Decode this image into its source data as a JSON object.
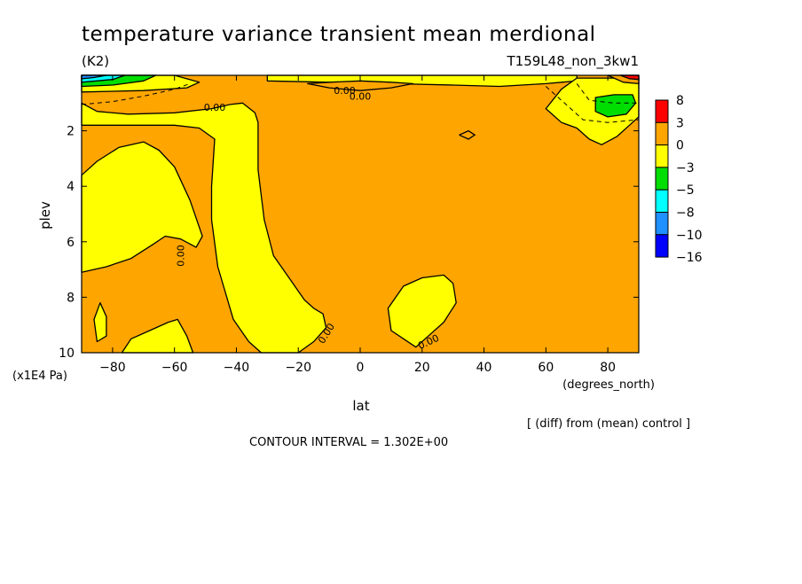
{
  "chart_data": {
    "type": "heatmap",
    "title": "temperature variance transient mean merdional",
    "units": "(K2)",
    "run_label": "T159L48_non_3kw1",
    "xlabel": "lat",
    "x_units": "(degrees_north)",
    "ylabel": "plev",
    "y_units": "(x1E4 Pa)",
    "xlim": [
      -90,
      90
    ],
    "ylim": [
      10,
      0
    ],
    "x_ticks": [
      "-80",
      "-60",
      "-40",
      "-20",
      "0",
      "20",
      "40",
      "60",
      "80"
    ],
    "y_ticks": [
      "2",
      "4",
      "6",
      "8",
      "10"
    ],
    "colorbar": {
      "levels": [
        "8",
        "3",
        "0",
        "-3",
        "-5",
        "-8",
        "-10",
        "-16"
      ],
      "colors": [
        "#ff0000",
        "#ffa500",
        "#ffff00",
        "#00dd00",
        "#00ffff",
        "#1e90ff",
        "#0000ff"
      ]
    },
    "contour_labels": [
      "0.00",
      "0.00",
      "0.00",
      "0.00",
      "0.00",
      "0.00"
    ],
    "footer_note": "[ (diff) from (mean) control ]",
    "contour_interval": "CONTOUR INTERVAL = 1.302E+00",
    "regions": [
      {
        "name": "south-polar-lower-lobe",
        "level": "-3",
        "points": [
          [
            -90,
            3.6
          ],
          [
            -85,
            3.1
          ],
          [
            -78,
            2.6
          ],
          [
            -70,
            2.4
          ],
          [
            -65,
            2.7
          ],
          [
            -60,
            3.3
          ],
          [
            -55,
            4.5
          ],
          [
            -51,
            5.8
          ],
          [
            -53,
            6.2
          ],
          [
            -58,
            5.9
          ],
          [
            -63,
            5.8
          ],
          [
            -67,
            6.1
          ],
          [
            -74,
            6.6
          ],
          [
            -82,
            6.9
          ],
          [
            -90,
            7.1
          ]
        ]
      },
      {
        "name": "south-polar-small-blob",
        "level": "-3",
        "points": [
          [
            -86,
            8.8
          ],
          [
            -84,
            8.2
          ],
          [
            -82,
            8.7
          ],
          [
            -82,
            9.4
          ],
          [
            -85,
            9.6
          ]
        ]
      },
      {
        "name": "south-surface-blob",
        "level": "-3",
        "points": [
          [
            -77,
            10
          ],
          [
            -74,
            9.5
          ],
          [
            -68,
            9.2
          ],
          [
            -62,
            8.9
          ],
          [
            -59,
            8.8
          ],
          [
            -56,
            9.4
          ],
          [
            -54,
            10
          ]
        ]
      },
      {
        "name": "southern-midlat-band",
        "level": "-3",
        "points": [
          [
            -90,
            1.0
          ],
          [
            -85,
            1.3
          ],
          [
            -75,
            1.4
          ],
          [
            -60,
            1.35
          ],
          [
            -48,
            1.2
          ],
          [
            -42,
            1.05
          ],
          [
            -38,
            1.0
          ],
          [
            -34,
            1.35
          ],
          [
            -33,
            1.7
          ],
          [
            -33,
            3.4
          ],
          [
            -31,
            5.2
          ],
          [
            -28,
            6.5
          ],
          [
            -23,
            7.3
          ],
          [
            -18,
            8.1
          ],
          [
            -15,
            8.4
          ],
          [
            -12,
            8.6
          ],
          [
            -11,
            9.1
          ],
          [
            -15,
            9.6
          ],
          [
            -20,
            10
          ],
          [
            -32,
            10
          ],
          [
            -36,
            9.6
          ],
          [
            -41,
            8.8
          ],
          [
            -46,
            6.9
          ],
          [
            -48,
            5.2
          ],
          [
            -48,
            4.0
          ],
          [
            -47,
            2.3
          ],
          [
            -52,
            1.9
          ],
          [
            -60,
            1.8
          ],
          [
            -75,
            1.8
          ],
          [
            -90,
            1.8
          ]
        ]
      },
      {
        "name": "top-equatorial-band",
        "level": "-3",
        "points": [
          [
            -30,
            0.2
          ],
          [
            -10,
            0.25
          ],
          [
            10,
            0.3
          ],
          [
            30,
            0.35
          ],
          [
            45,
            0.4
          ],
          [
            60,
            0.3
          ],
          [
            70,
            0.2
          ],
          [
            70,
            0
          ],
          [
            -30,
            0
          ]
        ]
      },
      {
        "name": "top-equatorial-center",
        "level": "0",
        "points": [
          [
            -17,
            0.3
          ],
          [
            -10,
            0.25
          ],
          [
            0,
            0.2
          ],
          [
            10,
            0.25
          ],
          [
            17,
            0.3
          ],
          [
            10,
            0.45
          ],
          [
            0,
            0.55
          ],
          [
            -10,
            0.45
          ]
        ]
      },
      {
        "name": "northern-tropical-blob",
        "level": "-3",
        "points": [
          [
            9,
            8.4
          ],
          [
            14,
            7.6
          ],
          [
            20,
            7.3
          ],
          [
            27,
            7.2
          ],
          [
            30,
            7.5
          ],
          [
            31,
            8.2
          ],
          [
            27,
            8.9
          ],
          [
            22,
            9.4
          ],
          [
            18,
            9.8
          ],
          [
            14,
            9.5
          ],
          [
            10,
            9.2
          ]
        ]
      },
      {
        "name": "north-midlat-band",
        "level": "-3",
        "points": [
          [
            60,
            1.2
          ],
          [
            65,
            0.5
          ],
          [
            70,
            0.1
          ],
          [
            90,
            0.1
          ],
          [
            90,
            1.5
          ],
          [
            87,
            1.8
          ],
          [
            83,
            2.2
          ],
          [
            78,
            2.5
          ],
          [
            74,
            2.3
          ],
          [
            70,
            1.9
          ],
          [
            65,
            1.7
          ]
        ]
      },
      {
        "name": "north-polar-core",
        "level": "-5",
        "points": [
          [
            76,
            0.8
          ],
          [
            82,
            0.7
          ],
          [
            88,
            0.7
          ],
          [
            89,
            1.0
          ],
          [
            86,
            1.4
          ],
          [
            80,
            1.5
          ],
          [
            76,
            1.3
          ]
        ]
      },
      {
        "name": "south-top-band",
        "level": "-3",
        "points": [
          [
            -90,
            0
          ],
          [
            -60,
            0
          ],
          [
            -52,
            0.25
          ],
          [
            -56,
            0.45
          ],
          [
            -70,
            0.55
          ],
          [
            -90,
            0.6
          ]
        ]
      },
      {
        "name": "south-top-green",
        "level": "-5",
        "points": [
          [
            -90,
            0
          ],
          [
            -66,
            0
          ],
          [
            -70,
            0.2
          ],
          [
            -80,
            0.35
          ],
          [
            -90,
            0.4
          ]
        ]
      },
      {
        "name": "south-top-cyan",
        "level": "-8",
        "points": [
          [
            -90,
            0
          ],
          [
            -76,
            0
          ],
          [
            -80,
            0.15
          ],
          [
            -90,
            0.25
          ]
        ]
      },
      {
        "name": "south-top-blue",
        "level": "-10",
        "points": [
          [
            -90,
            0
          ],
          [
            -82,
            0
          ],
          [
            -86,
            0.08
          ],
          [
            -90,
            0.12
          ]
        ]
      },
      {
        "name": "north-top-core",
        "level": "3",
        "points": [
          [
            80,
            0
          ],
          [
            90,
            0
          ],
          [
            90,
            0.3
          ],
          [
            85,
            0.25
          ]
        ]
      },
      {
        "name": "north-top-red",
        "level": "8",
        "points": [
          [
            84,
            0
          ],
          [
            90,
            0
          ],
          [
            90,
            0.15
          ],
          [
            87,
            0.12
          ]
        ]
      }
    ],
    "contour_lines": [
      {
        "name": "cut-off-ring",
        "points": [
          [
            32,
            2.15
          ],
          [
            35,
            2.0
          ],
          [
            37,
            2.15
          ],
          [
            35,
            2.3
          ],
          [
            32,
            2.15
          ]
        ]
      }
    ],
    "dashed_lines": [
      {
        "name": "south-dashed",
        "points": [
          [
            -90,
            1.05
          ],
          [
            -80,
            0.95
          ],
          [
            -70,
            0.75
          ],
          [
            -60,
            0.5
          ],
          [
            -55,
            0.3
          ]
        ]
      },
      {
        "name": "north-dashed-outer",
        "points": [
          [
            60,
            0.4
          ],
          [
            66,
            1.0
          ],
          [
            72,
            1.6
          ],
          [
            80,
            1.7
          ],
          [
            90,
            1.6
          ]
        ]
      },
      {
        "name": "north-dashed-inner",
        "points": [
          [
            70,
            0.3
          ],
          [
            74,
            0.9
          ],
          [
            82,
            1.0
          ],
          [
            90,
            1.0
          ]
        ]
      }
    ],
    "label_positions": [
      {
        "x": -47,
        "y": 1.15,
        "rot": 0
      },
      {
        "x": -58,
        "y": 6.5,
        "rot": -90
      },
      {
        "x": -11,
        "y": 9.3,
        "rot": -58
      },
      {
        "x": 22,
        "y": 9.6,
        "rot": -25
      },
      {
        "x": -5,
        "y": 0.55,
        "rot": 0
      },
      {
        "x": 0,
        "y": 0.75,
        "rot": 0
      }
    ]
  }
}
